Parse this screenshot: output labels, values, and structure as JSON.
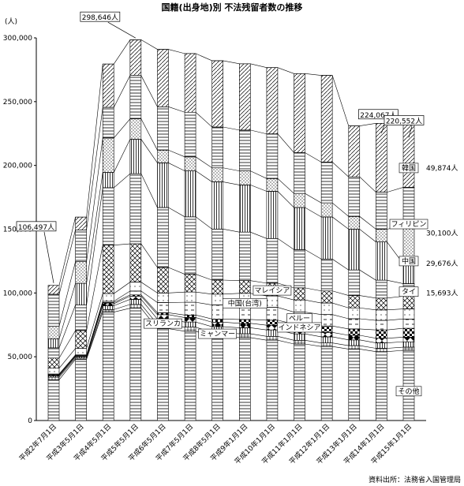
{
  "chart_data": {
    "type": "bar",
    "title": "国籍(出身地)別 不法残留者数の推移",
    "ylabel": "(人)",
    "ylim": [
      0,
      300000
    ],
    "yticks": [
      0,
      50000,
      100000,
      150000,
      200000,
      250000,
      300000
    ],
    "ytick_labels": [
      "0",
      "50,000",
      "100,000",
      "150,000",
      "200,000",
      "250,000",
      "300,000"
    ],
    "categories": [
      "平成2年7月1日",
      "平成3年5月1日",
      "平成4年5月1日",
      "平成5年5月1日",
      "平成6年5月1日",
      "平成7年5月1日",
      "平成8年5月1日",
      "平成9年1月1日",
      "平成10年1月1日",
      "平成11年1月1日",
      "平成12年1月1日",
      "平成13年1月1日",
      "平成14年1月1日",
      "平成15年1月1日"
    ],
    "series": [
      {
        "name": "その他",
        "values": [
          32000,
          48000,
          85000,
          88000,
          72000,
          70000,
          66000,
          65000,
          63000,
          60000,
          58000,
          56000,
          54000,
          55000
        ]
      },
      {
        "name": "",
        "values": [
          2000,
          1000,
          2000,
          3000,
          3500,
          3200,
          3100,
          3000,
          3000,
          2900,
          2800,
          2700,
          2600,
          2500
        ]
      },
      {
        "name": "ミャンマー",
        "values": [
          1000,
          1000,
          3000,
          4000,
          4000,
          4000,
          4500,
          4700,
          5000,
          5000,
          4800,
          4500,
          4300,
          4200
        ]
      },
      {
        "name": "スリランカ",
        "values": [
          500,
          500,
          1500,
          2500,
          3500,
          3500,
          3500,
          3500,
          3700,
          3600,
          3500,
          3600,
          3600,
          3600
        ]
      },
      {
        "name": "インドネシア",
        "values": [
          500,
          500,
          1000,
          1000,
          1500,
          2000,
          2500,
          3000,
          4000,
          4000,
          5000,
          5000,
          6500,
          7000
        ]
      },
      {
        "name": "ペルー",
        "values": [
          500,
          500,
          1000,
          3000,
          8000,
          10000,
          11000,
          12000,
          10000,
          9500,
          9000,
          8000,
          7500,
          7300
        ]
      },
      {
        "name": "中国(台湾)",
        "values": [
          4500,
          5000,
          6000,
          7000,
          7500,
          8000,
          8500,
          8500,
          9000,
          9500,
          9000,
          8500,
          8200,
          7900
        ]
      },
      {
        "name": "マレイシア",
        "values": [
          8000,
          14000,
          38000,
          30000,
          20000,
          14000,
          11000,
          10000,
          10000,
          9500,
          9500,
          9700,
          9300,
          9900
        ]
      },
      {
        "name": "",
        "values": [
          8000,
          20000,
          45000,
          55000,
          47000,
          45000,
          40000,
          38000,
          35000,
          30000,
          25000,
          20000,
          14000,
          9900
        ]
      },
      {
        "name": "タイ",
        "values": [
          7000,
          17000,
          12000,
          27000,
          35000,
          36000,
          37000,
          37000,
          37000,
          33000,
          33000,
          32000,
          30000,
          15700
        ]
      },
      {
        "name": "中国",
        "values": [
          10000,
          17000,
          27000,
          16000,
          10000,
          11000,
          11000,
          11000,
          10000,
          11000,
          11000,
          10000,
          10000,
          29700
        ]
      },
      {
        "name": "フィリピン",
        "values": [
          25000,
          25000,
          24000,
          34000,
          34000,
          35000,
          32000,
          32000,
          35000,
          32000,
          32000,
          31000,
          29000,
          30100
        ]
      },
      {
        "name": "韓国",
        "values": [
          7000,
          10000,
          34000,
          28000,
          45000,
          46000,
          52000,
          52000,
          52000,
          62000,
          68000,
          40000,
          54000,
          49900
        ]
      }
    ],
    "totals": [
      106497,
      160000,
      279000,
      298646,
      294000,
      288000,
      284000,
      283000,
      277000,
      271000,
      252000,
      232000,
      224067,
      220552
    ],
    "annotations": [
      {
        "text": "106,497人",
        "index": 0
      },
      {
        "text": "298,646人",
        "index": 3
      },
      {
        "text": "224,067人",
        "index": 12
      },
      {
        "text": "220,552人",
        "index": 13
      }
    ],
    "right_values": [
      {
        "text": "49,874人",
        "y": 198000
      },
      {
        "text": "30,100人",
        "y": 147000
      },
      {
        "text": "29,676人",
        "y": 123000
      },
      {
        "text": "15,693人",
        "y": 100000
      }
    ],
    "inline_labels": [
      {
        "text": "韓国",
        "index": 13,
        "y": 198000
      },
      {
        "text": "フィリピン",
        "index": 13,
        "y": 154000
      },
      {
        "text": "中国",
        "index": 13,
        "y": 125000
      },
      {
        "text": "タイ",
        "index": 13,
        "y": 101000
      },
      {
        "text": "その他",
        "index": 13,
        "y": 23000
      },
      {
        "text": "マレイシア",
        "index": 8,
        "y": 102000
      },
      {
        "text": "中国(台湾)",
        "index": 7,
        "y": 92000
      },
      {
        "text": "ペルー",
        "index": 9,
        "y": 80000
      },
      {
        "text": "インドネシア",
        "index": 9,
        "y": 73000
      },
      {
        "text": "スリランカ",
        "index": 4,
        "y": 76000
      },
      {
        "text": "ミャンマー",
        "index": 6,
        "y": 68000
      }
    ],
    "source": "資料出所：法務省入国管理局",
    "grid": false,
    "legend": "none"
  }
}
